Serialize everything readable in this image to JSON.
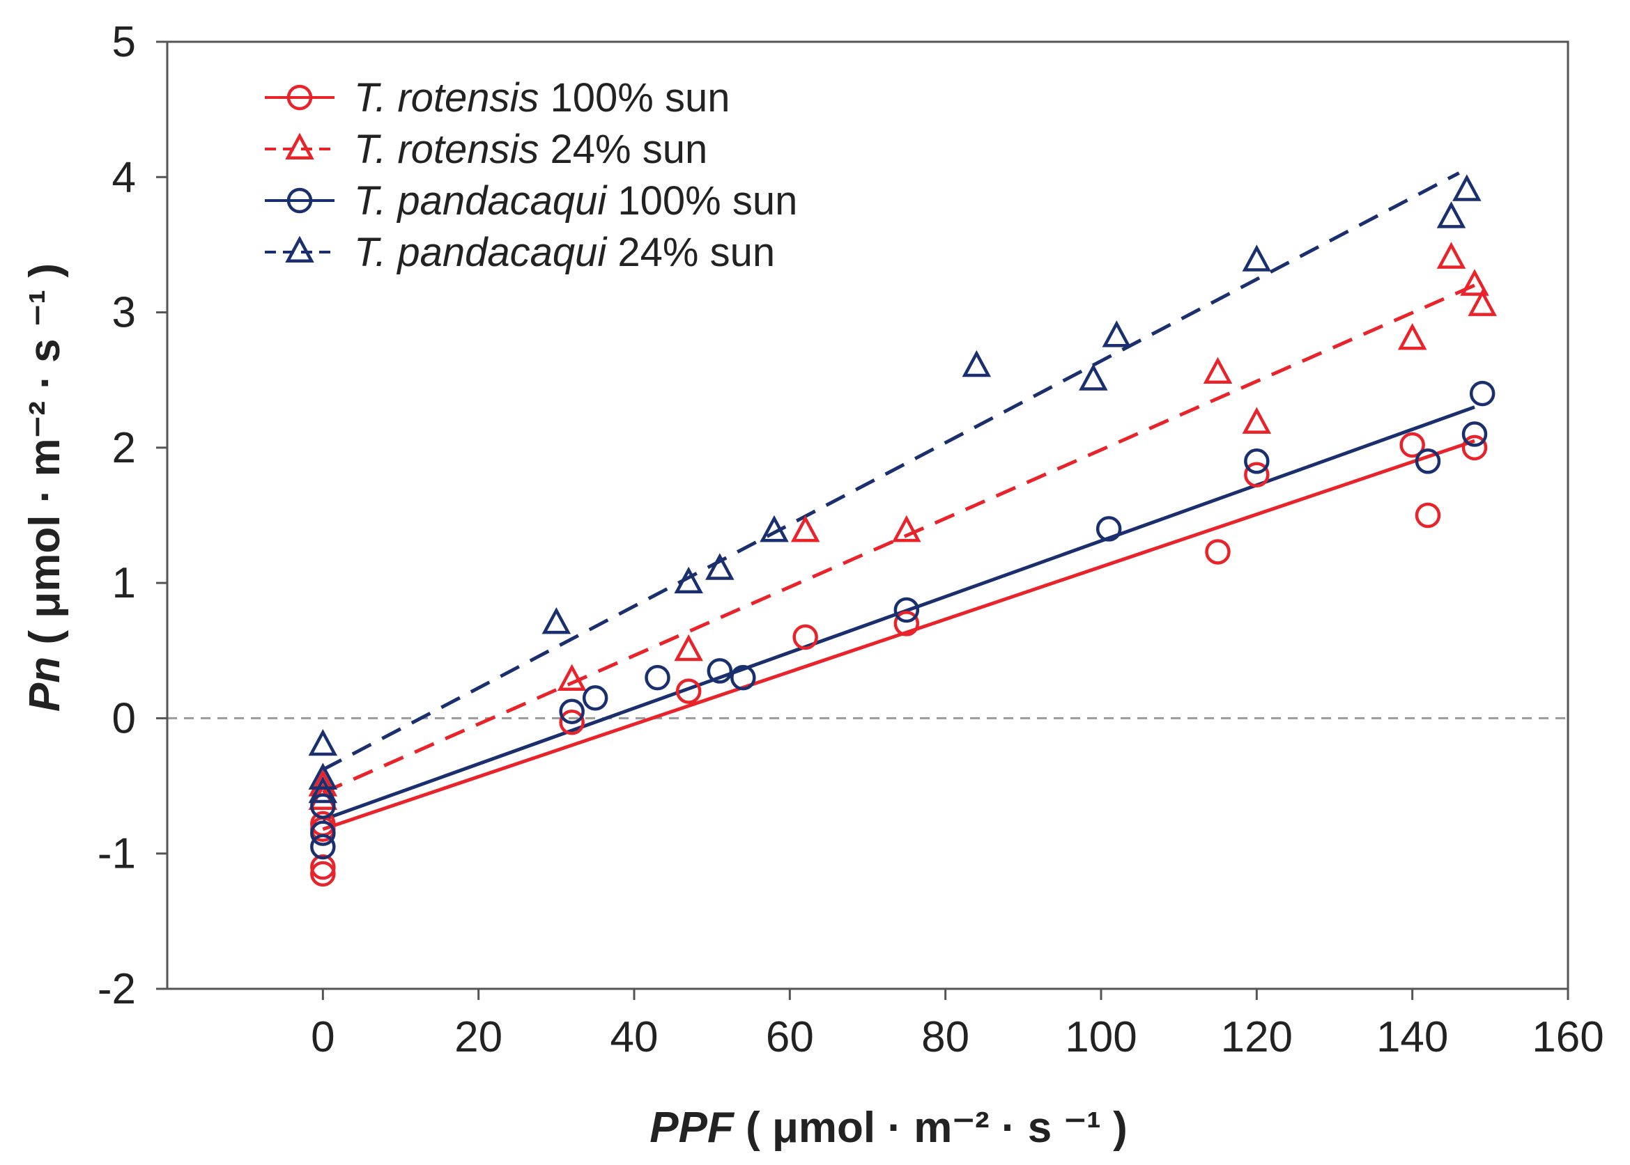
{
  "chart_data": {
    "type": "scatter",
    "title": "",
    "xlabel": {
      "italic": "PPF",
      "unit": "( μmol · m⁻² · s ⁻¹ )"
    },
    "ylabel": {
      "italic": "Pn",
      "unit": "( μmol · m⁻² · s ⁻¹ )"
    },
    "xlim": [
      -20,
      160
    ],
    "ylim": [
      -2,
      5
    ],
    "xticks": [
      0,
      20,
      40,
      60,
      80,
      100,
      120,
      140,
      160
    ],
    "yticks": [
      -2,
      -1,
      0,
      1,
      2,
      3,
      4,
      5
    ],
    "x_tick_labels": [
      "0",
      "20",
      "40",
      "60",
      "80",
      "100",
      "120",
      "140",
      "160"
    ],
    "y_tick_labels": [
      "-2",
      "-1",
      "0",
      "1",
      "2",
      "3",
      "4",
      "5"
    ],
    "zero_line": {
      "y": 0,
      "style": "dashed",
      "color": "#999999"
    },
    "legend_position": "top-left",
    "series": [
      {
        "name_italic": "T. rotensis",
        "name_rest": " 100% sun",
        "marker": "circle",
        "line": "solid",
        "color": "#e8232a",
        "fit": {
          "x": [
            0,
            148
          ],
          "y": [
            -0.82,
            2.05
          ]
        },
        "points": [
          {
            "x": 0,
            "y": -0.78
          },
          {
            "x": 0,
            "y": -0.82
          },
          {
            "x": 0,
            "y": -1.1
          },
          {
            "x": 0,
            "y": -1.15
          },
          {
            "x": 32,
            "y": -0.03
          },
          {
            "x": 47,
            "y": 0.2
          },
          {
            "x": 62,
            "y": 0.6
          },
          {
            "x": 75,
            "y": 0.7
          },
          {
            "x": 115,
            "y": 1.23
          },
          {
            "x": 120,
            "y": 1.8
          },
          {
            "x": 140,
            "y": 2.02
          },
          {
            "x": 142,
            "y": 1.5
          },
          {
            "x": 148,
            "y": 2.0
          }
        ]
      },
      {
        "name_italic": "T. rotensis",
        "name_rest": " 24% sun",
        "marker": "triangle",
        "line": "dashed",
        "color": "#e8232a",
        "fit": {
          "x": [
            0,
            148
          ],
          "y": [
            -0.55,
            3.2
          ]
        },
        "points": [
          {
            "x": 0,
            "y": -0.5
          },
          {
            "x": 0,
            "y": -0.6
          },
          {
            "x": 32,
            "y": 0.28
          },
          {
            "x": 47,
            "y": 0.5
          },
          {
            "x": 62,
            "y": 1.38
          },
          {
            "x": 75,
            "y": 1.38
          },
          {
            "x": 115,
            "y": 2.55
          },
          {
            "x": 120,
            "y": 2.18
          },
          {
            "x": 140,
            "y": 2.8
          },
          {
            "x": 145,
            "y": 3.4
          },
          {
            "x": 148,
            "y": 3.2
          },
          {
            "x": 149,
            "y": 3.05
          }
        ]
      },
      {
        "name_italic": "T. pandacaqui",
        "name_rest": " 100% sun",
        "marker": "circle",
        "line": "solid",
        "color": "#1a2f6e",
        "fit": {
          "x": [
            0,
            148
          ],
          "y": [
            -0.75,
            2.3
          ]
        },
        "points": [
          {
            "x": 0,
            "y": -0.65
          },
          {
            "x": 0,
            "y": -0.85
          },
          {
            "x": 0,
            "y": -0.95
          },
          {
            "x": 32,
            "y": 0.05
          },
          {
            "x": 35,
            "y": 0.15
          },
          {
            "x": 43,
            "y": 0.3
          },
          {
            "x": 51,
            "y": 0.35
          },
          {
            "x": 54,
            "y": 0.3
          },
          {
            "x": 75,
            "y": 0.8
          },
          {
            "x": 101,
            "y": 1.4
          },
          {
            "x": 120,
            "y": 1.9
          },
          {
            "x": 142,
            "y": 1.9
          },
          {
            "x": 148,
            "y": 2.1
          },
          {
            "x": 149,
            "y": 2.4
          }
        ]
      },
      {
        "name_italic": "T. pandacaqui",
        "name_rest": " 24% sun",
        "marker": "triangle",
        "line": "dashed",
        "color": "#1a2f6e",
        "fit": {
          "x": [
            0,
            146
          ],
          "y": [
            -0.38,
            4.03
          ]
        },
        "points": [
          {
            "x": 0,
            "y": -0.2
          },
          {
            "x": 0,
            "y": -0.45
          },
          {
            "x": 0,
            "y": -0.55
          },
          {
            "x": 30,
            "y": 0.7
          },
          {
            "x": 47,
            "y": 1.0
          },
          {
            "x": 51,
            "y": 1.1
          },
          {
            "x": 58,
            "y": 1.38
          },
          {
            "x": 84,
            "y": 2.6
          },
          {
            "x": 99,
            "y": 2.5
          },
          {
            "x": 102,
            "y": 2.82
          },
          {
            "x": 120,
            "y": 3.38
          },
          {
            "x": 145,
            "y": 3.7
          },
          {
            "x": 147,
            "y": 3.9
          }
        ]
      }
    ]
  }
}
